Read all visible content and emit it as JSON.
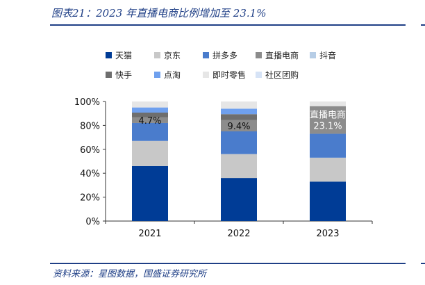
{
  "header": {
    "title": "图表21：2023 年直播电商比例增加至 23.1%"
  },
  "footer": {
    "source": "资料来源：星图数据，国盛证券研究所"
  },
  "chart_data": {
    "type": "bar",
    "stacked": true,
    "percent_stacked": true,
    "categories": [
      "2021",
      "2022",
      "2023"
    ],
    "ylim": [
      0,
      100
    ],
    "yticks": [
      "0%",
      "20%",
      "40%",
      "60%",
      "80%",
      "100%"
    ],
    "legend_position": "top",
    "series": [
      {
        "name": "天猫",
        "color": "#003c96",
        "values": [
          46,
          36,
          33
        ]
      },
      {
        "name": "京东",
        "color": "#c8c8c8",
        "values": [
          21,
          20,
          20
        ]
      },
      {
        "name": "拼多多",
        "color": "#4a7ccc",
        "values": [
          15,
          19,
          20
        ]
      },
      {
        "name": "直播电商",
        "color": "#8c8c8c",
        "values": [
          4.7,
          9.4,
          23.1
        ]
      },
      {
        "name": "抖音",
        "color": "#b6cde6",
        "values": [
          0,
          0,
          0
        ]
      },
      {
        "name": "快手",
        "color": "#6e6e6e",
        "values": [
          4,
          5,
          0
        ]
      },
      {
        "name": "点淘",
        "color": "#6fa0ee",
        "values": [
          4.3,
          4.6,
          0
        ]
      },
      {
        "name": "即时零售",
        "color": "#e6e6e6",
        "values": [
          5,
          6,
          3.9
        ]
      },
      {
        "name": "社区团购",
        "color": "#d6e3f6",
        "values": [
          0,
          0,
          0
        ]
      }
    ],
    "annotations": [
      {
        "category": "2021",
        "text": "4.7%"
      },
      {
        "category": "2022",
        "text": "9.4%"
      },
      {
        "category": "2023",
        "text": "直播电商\n23.1%"
      }
    ]
  }
}
